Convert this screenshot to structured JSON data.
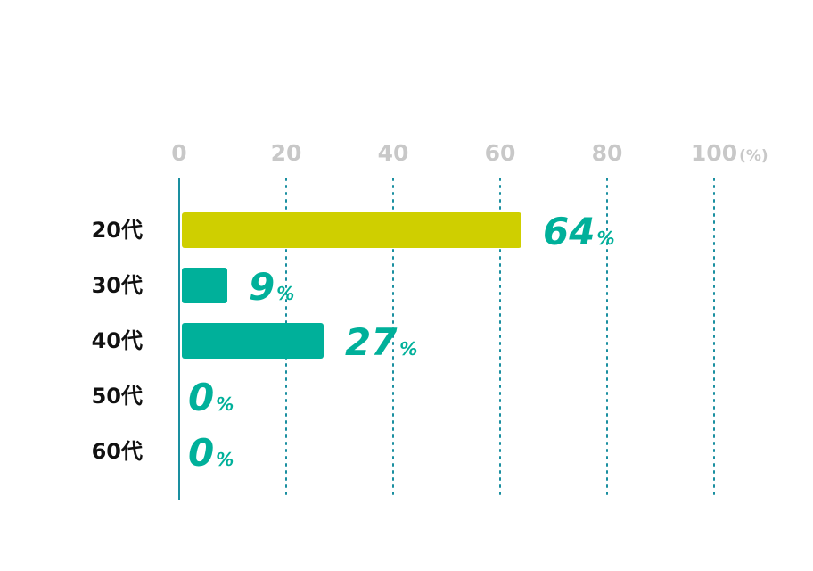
{
  "chart_data": {
    "type": "bar",
    "orientation": "horizontal",
    "categories": [
      "20代",
      "30代",
      "40代",
      "50代",
      "60代"
    ],
    "values": [
      64,
      9,
      27,
      0,
      0
    ],
    "value_suffix": "%",
    "xlim": [
      0,
      100
    ],
    "xticks": [
      0,
      20,
      40,
      60,
      80,
      100
    ],
    "x_unit": "(%)",
    "grid": "vertical dotted",
    "title": "",
    "xlabel": "",
    "ylabel": "",
    "colors": {
      "highlight": "#cfcf00",
      "default": "#00b09a",
      "value_text": "#00b09a",
      "axis": "#1a8fa0",
      "grid": "#1a8fa0",
      "tick_text": "#c8c8c8",
      "category_text": "#111111"
    }
  }
}
